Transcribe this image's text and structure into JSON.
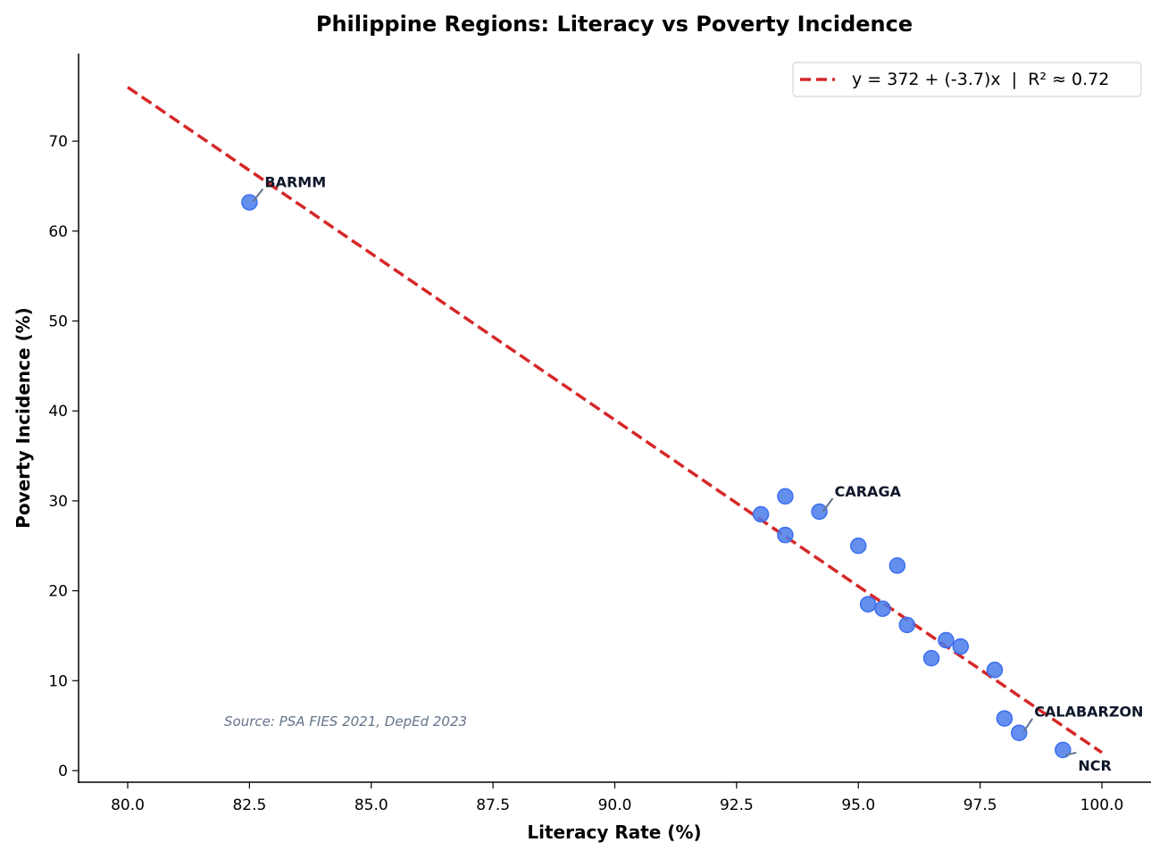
{
  "chart_data": {
    "type": "scatter",
    "title": "Philippine Regions: Literacy vs Poverty Incidence",
    "xlabel": "Literacy Rate (%)",
    "ylabel": "Poverty Incidence (%)",
    "xlim": [
      79.0,
      101.0
    ],
    "ylim": [
      -1.3,
      80.0
    ],
    "xticks": [
      "80.0",
      "82.5",
      "85.0",
      "87.5",
      "90.0",
      "92.5",
      "95.0",
      "97.5",
      "100.0"
    ],
    "yticks": [
      "0",
      "10",
      "20",
      "30",
      "40",
      "50",
      "60",
      "70"
    ],
    "grid": false,
    "legend_position": "top-right",
    "point_color": "#4a7bea",
    "line_color": "#d62728",
    "points": [
      {
        "x": 82.5,
        "y": 63.2,
        "label": "BARMM"
      },
      {
        "x": 93.0,
        "y": 28.5
      },
      {
        "x": 93.5,
        "y": 30.5
      },
      {
        "x": 93.5,
        "y": 26.2
      },
      {
        "x": 94.2,
        "y": 28.8,
        "label": "CARAGA"
      },
      {
        "x": 95.0,
        "y": 25.0
      },
      {
        "x": 95.8,
        "y": 22.8
      },
      {
        "x": 95.2,
        "y": 18.5
      },
      {
        "x": 95.5,
        "y": 18.0
      },
      {
        "x": 96.0,
        "y": 16.2
      },
      {
        "x": 96.5,
        "y": 12.5
      },
      {
        "x": 96.8,
        "y": 14.5
      },
      {
        "x": 97.1,
        "y": 13.8
      },
      {
        "x": 97.8,
        "y": 11.2
      },
      {
        "x": 98.0,
        "y": 5.8
      },
      {
        "x": 98.3,
        "y": 4.2,
        "label": "CALABARZON"
      },
      {
        "x": 99.2,
        "y": 2.3,
        "label": "NCR"
      }
    ],
    "fit_line": {
      "intercept": 372,
      "slope": -3.7,
      "x_range": [
        80,
        100
      ],
      "label": "y = 372 + (-3.7)x  |  R² ≈ 0.72"
    },
    "annotation": "Source: PSA FIES 2021, DepEd 2023"
  }
}
